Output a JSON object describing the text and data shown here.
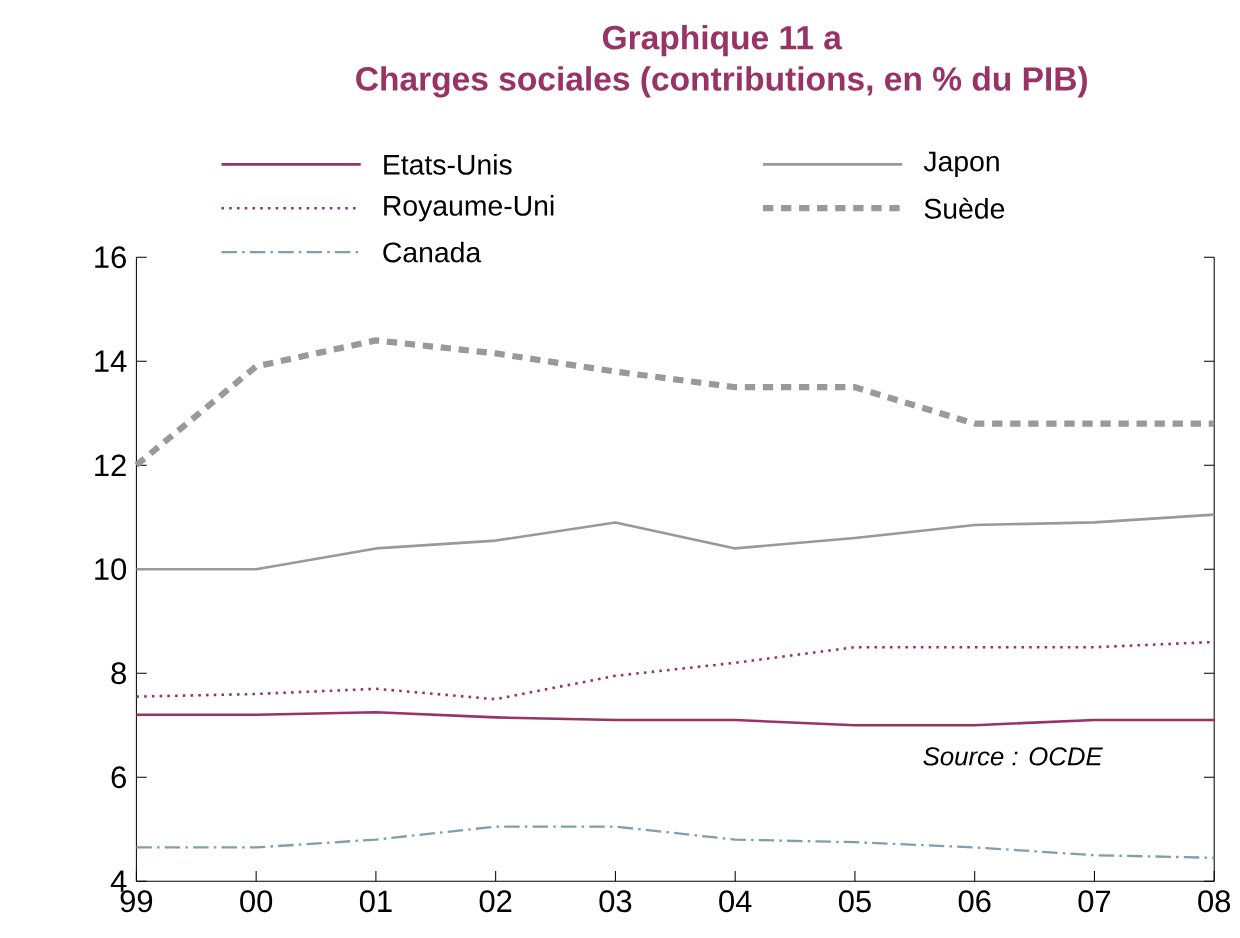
{
  "chart_data": {
    "type": "line",
    "title": "Graphique 11 a",
    "subtitle": "Charges sociales (contributions, en % du PIB)",
    "categories": [
      "99",
      "00",
      "01",
      "02",
      "03",
      "04",
      "05",
      "06",
      "07",
      "08"
    ],
    "series": [
      {
        "name": "Etats-Unis",
        "color": "#993366",
        "line_style": "solid",
        "values": [
          7.2,
          7.2,
          7.25,
          7.15,
          7.1,
          7.1,
          7.0,
          7.0,
          7.1,
          7.1
        ]
      },
      {
        "name": "Japon",
        "color": "#999999",
        "line_style": "solid",
        "values": [
          10.0,
          10.0,
          10.4,
          10.55,
          10.9,
          10.4,
          10.6,
          10.85,
          10.9,
          11.05
        ]
      },
      {
        "name": "Royaume-Uni",
        "color": "#993366",
        "line_style": "dotted",
        "values": [
          7.55,
          7.6,
          7.7,
          7.5,
          7.95,
          8.2,
          8.5,
          8.5,
          8.5,
          8.6
        ]
      },
      {
        "name": "Suède",
        "color": "#999999",
        "line_style": "dashed",
        "values": [
          12.0,
          13.9,
          14.4,
          14.15,
          13.8,
          13.5,
          13.5,
          12.8,
          12.8,
          12.8
        ]
      },
      {
        "name": "Canada",
        "color": "#7f9fb0",
        "line_style": "dashdot",
        "values": [
          4.65,
          4.65,
          4.8,
          5.05,
          5.05,
          4.8,
          4.75,
          4.65,
          4.5,
          4.45
        ]
      }
    ],
    "ylim": [
      4,
      16
    ],
    "yticks": [
      4,
      6,
      8,
      10,
      12,
      14,
      16
    ],
    "legend": "top",
    "grid": false,
    "annotations": [
      "Source : OCDE"
    ]
  }
}
